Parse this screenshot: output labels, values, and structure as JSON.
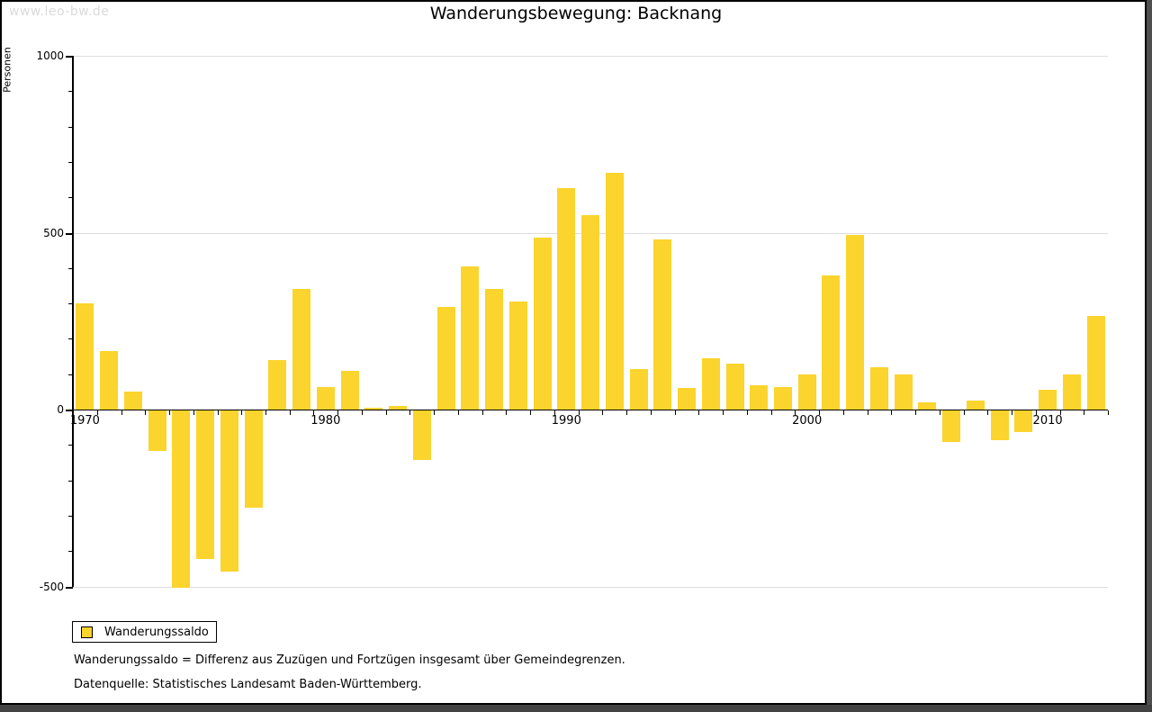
{
  "watermark": "www.leo-bw.de",
  "title": "Wanderungsbewegung: Backnang",
  "legend": {
    "label": "Wanderungssaldo"
  },
  "footnotes": {
    "definition": "Wanderungssaldo = Differenz aus Zuzügen und Fortzügen insgesamt über Gemeindegrenzen.",
    "source": "Datenquelle: Statistisches Landesamt Baden-Württemberg."
  },
  "colors": {
    "bar": "#FBD42D",
    "grid": "#dddddd",
    "axis": "#000000",
    "watermark": "#dadada",
    "frame_gray": "#4f4f4f"
  },
  "chart_data": {
    "type": "bar",
    "title": "Wanderungsbewegung: Backnang",
    "xlabel": "",
    "ylabel": "Personen",
    "ylim": [
      -500,
      1000
    ],
    "grid": "horizontal gridlines at labeled ticks, light gray",
    "legend_position": "bottom-left",
    "y_ticks_labeled": [
      1000,
      500,
      0,
      -500
    ],
    "y_minor_tick_step": 100,
    "x_ticks_labeled": [
      1970,
      1980,
      1990,
      2000,
      2010
    ],
    "categories": [
      1970,
      1971,
      1972,
      1973,
      1974,
      1975,
      1976,
      1977,
      1978,
      1979,
      1980,
      1981,
      1982,
      1983,
      1984,
      1985,
      1986,
      1987,
      1988,
      1989,
      1990,
      1991,
      1992,
      1993,
      1994,
      1995,
      1996,
      1997,
      1998,
      1999,
      2000,
      2001,
      2002,
      2003,
      2004,
      2005,
      2006,
      2007,
      2008,
      2009,
      2010,
      2011,
      2012
    ],
    "series": [
      {
        "name": "Wanderungssaldo",
        "values": [
          300,
          165,
          50,
          -115,
          -500,
          -420,
          -455,
          -275,
          140,
          340,
          65,
          110,
          5,
          10,
          -140,
          290,
          405,
          340,
          305,
          485,
          625,
          550,
          670,
          115,
          480,
          60,
          145,
          130,
          70,
          65,
          100,
          380,
          495,
          120,
          100,
          20,
          -90,
          25,
          -85,
          -60,
          55,
          100,
          265
        ]
      }
    ]
  }
}
